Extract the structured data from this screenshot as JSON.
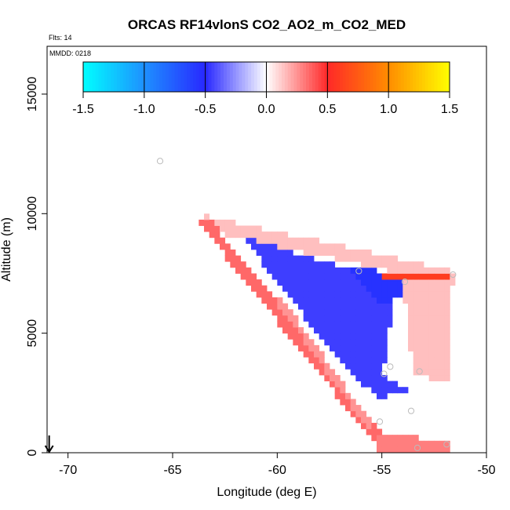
{
  "chart_data": {
    "type": "heatmap",
    "title": "ORCAS RF14vlonS CO2_AO2_m_CO2_MED",
    "flights_label": "Flts: 14",
    "date_label": "MMDD: 0218",
    "xlabel": "Longitude (deg E)",
    "ylabel": "Altitude (m)",
    "xlim": [
      -71,
      -50
    ],
    "ylim": [
      0,
      17000
    ],
    "x_ticks": [
      -70,
      -65,
      -60,
      -55,
      -50
    ],
    "x_tick_labels": [
      "-70",
      "-65",
      "-60",
      "-55",
      "-50"
    ],
    "y_ticks": [
      0,
      5000,
      10000,
      15000
    ],
    "y_tick_labels": [
      "0",
      "5000",
      "10000",
      "15000"
    ],
    "colorbar": {
      "range": [
        -1.5,
        1.5
      ],
      "ticks": [
        -1.5,
        -1.0,
        -0.5,
        0.0,
        0.5,
        1.0,
        1.5
      ],
      "tick_labels": [
        "-1.5",
        "-1.0",
        "-0.5",
        "0.0",
        "0.5",
        "1.0",
        "1.5"
      ],
      "colors": [
        "#00ffff",
        "#1e90ff",
        "#2828ff",
        "#ffffff",
        "#ff2828",
        "#ff8c00",
        "#ffff00"
      ]
    },
    "cell_size": {
      "lon": 0.25,
      "alt": 250
    },
    "bands": [
      {
        "name": "upper-edge",
        "type": "line",
        "from": [
          -63.4,
          9600
        ],
        "to": [
          -51.8,
          7350
        ],
        "width": 0.6,
        "value": 0.15
      },
      {
        "name": "outer-diagonal",
        "type": "line",
        "from": [
          -63.4,
          9600
        ],
        "to": [
          -55.0,
          400
        ],
        "width": 0.5,
        "value": 0.35
      },
      {
        "name": "blue-wedge",
        "type": "poly",
        "points": [
          [
            -61.5,
            9000
          ],
          [
            -57.0,
            7800
          ],
          [
            -54.2,
            7400
          ],
          [
            -55.0,
            3200
          ],
          [
            -53.8,
            2600
          ],
          [
            -55.2,
            2300
          ],
          [
            -57.0,
            3800
          ],
          [
            -60.5,
            7700
          ]
        ],
        "value": -0.45
      },
      {
        "name": "blue-top-bar",
        "type": "poly",
        "points": [
          [
            -56.5,
            7700
          ],
          [
            -53.0,
            7500
          ],
          [
            -53.5,
            6500
          ],
          [
            -55.2,
            6300
          ]
        ],
        "value": -0.55
      },
      {
        "name": "red-right-triangle",
        "type": "poly",
        "points": [
          [
            -54.0,
            7200
          ],
          [
            -51.8,
            7400
          ],
          [
            -51.8,
            3000
          ],
          [
            -53.5,
            3200
          ]
        ],
        "value": 0.15
      },
      {
        "name": "red-top-bar",
        "type": "line",
        "from": [
          -54.8,
          7350
        ],
        "to": [
          -51.8,
          7400
        ],
        "width": 0.35,
        "value": 0.6
      },
      {
        "name": "red-bottom",
        "type": "poly",
        "points": [
          [
            -55.2,
            800
          ],
          [
            -51.8,
            500
          ],
          [
            -51.8,
            0
          ],
          [
            -55.2,
            0
          ]
        ],
        "value": 0.3
      },
      {
        "name": "inner-diagonal",
        "type": "line",
        "from": [
          -60.0,
          6500
        ],
        "to": [
          -55.5,
          1000
        ],
        "width": 0.3,
        "value": 0.25
      }
    ],
    "points": [
      {
        "lon": -65.6,
        "alt": 12200
      },
      {
        "lon": -56.1,
        "alt": 7600
      },
      {
        "lon": -53.9,
        "alt": 7150
      },
      {
        "lon": -51.6,
        "alt": 7450
      },
      {
        "lon": -54.9,
        "alt": 3300
      },
      {
        "lon": -54.6,
        "alt": 3600
      },
      {
        "lon": -53.2,
        "alt": 3400
      },
      {
        "lon": -53.6,
        "alt": 1750
      },
      {
        "lon": -55.1,
        "alt": 1300
      },
      {
        "lon": -51.9,
        "alt": 350
      },
      {
        "lon": -53.3,
        "alt": 200
      }
    ],
    "arrow": {
      "lon": -70.9,
      "direction": "down"
    }
  }
}
